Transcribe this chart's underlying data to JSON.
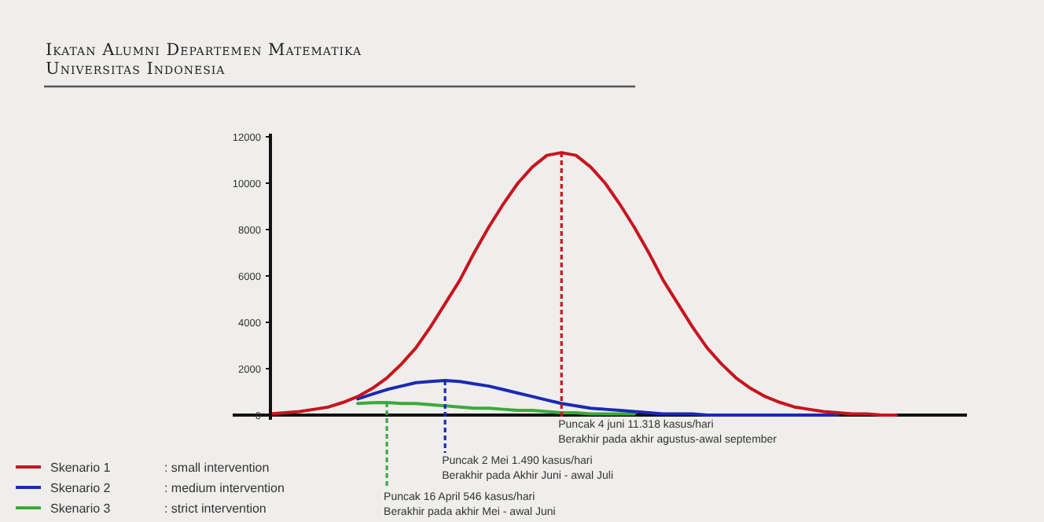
{
  "chart_data": {
    "type": "line",
    "title": "Ikatan Alumni Departemen Matematika",
    "subtitle": "Universitas Indonesia",
    "categories": [
      null,
      null,
      null,
      null,
      null,
      null,
      null,
      null,
      null,
      null,
      null,
      null,
      null,
      null,
      null,
      null,
      null,
      null,
      null,
      null,
      null,
      null,
      null,
      null,
      null,
      null,
      null,
      null,
      null,
      null,
      null,
      null,
      null,
      null,
      null,
      null,
      null,
      null,
      null,
      null,
      null,
      null,
      null,
      null
    ],
    "series": [
      {
        "name": "Skenario 1 : small intervention",
        "color": "#c8141e",
        "values": [
          50,
          100,
          150,
          250,
          350,
          550,
          800,
          1150,
          1600,
          2200,
          2900,
          3800,
          4800,
          5800,
          7000,
          8100,
          9100,
          10000,
          10700,
          11200,
          11318,
          11200,
          10700,
          10000,
          9100,
          8100,
          7000,
          5800,
          4800,
          3800,
          2900,
          2200,
          1600,
          1150,
          800,
          550,
          350,
          250,
          150,
          100,
          50,
          50,
          0,
          0
        ]
      },
      {
        "name": "Skenario 2 : medium intervention",
        "color": "#1a2ab4",
        "values": [
          null,
          null,
          null,
          null,
          null,
          null,
          700,
          900,
          1100,
          1250,
          1400,
          1450,
          1490,
          1450,
          1350,
          1250,
          1100,
          950,
          800,
          650,
          500,
          400,
          300,
          250,
          200,
          150,
          100,
          50,
          50,
          50,
          0,
          0,
          0,
          0,
          0,
          0,
          0,
          0,
          0,
          0,
          null,
          null,
          null,
          null
        ]
      },
      {
        "name": "Skenario 3 : strict intervention",
        "color": "#3aaa3a",
        "values": [
          null,
          null,
          null,
          null,
          null,
          null,
          500,
          530,
          546,
          500,
          500,
          450,
          400,
          350,
          300,
          300,
          250,
          200,
          200,
          150,
          100,
          100,
          50,
          50,
          50,
          50,
          null,
          null,
          null,
          null,
          null,
          null,
          null,
          null,
          null,
          null,
          null,
          null,
          null,
          null,
          null,
          null,
          null,
          null
        ]
      }
    ],
    "ylim": [
      0,
      12000
    ],
    "yticks": [
      0,
      2000,
      4000,
      6000,
      8000,
      10000,
      12000
    ],
    "grid": false,
    "legend": "bottom left",
    "marker": "none",
    "line_style": "solid",
    "annotations": [
      "Puncak 4 juni 11.318 kasus/hari\nBerakhir pada akhir agustus-awal september",
      "Puncak 2 Mei 1.490 kasus/hari\nBerakhir pada Akhir Juni - awal Juli",
      "Puncak 16 April 546 kasus/hari\nBerakhir pada akhir Mei - awal Juni"
    ]
  }
}
